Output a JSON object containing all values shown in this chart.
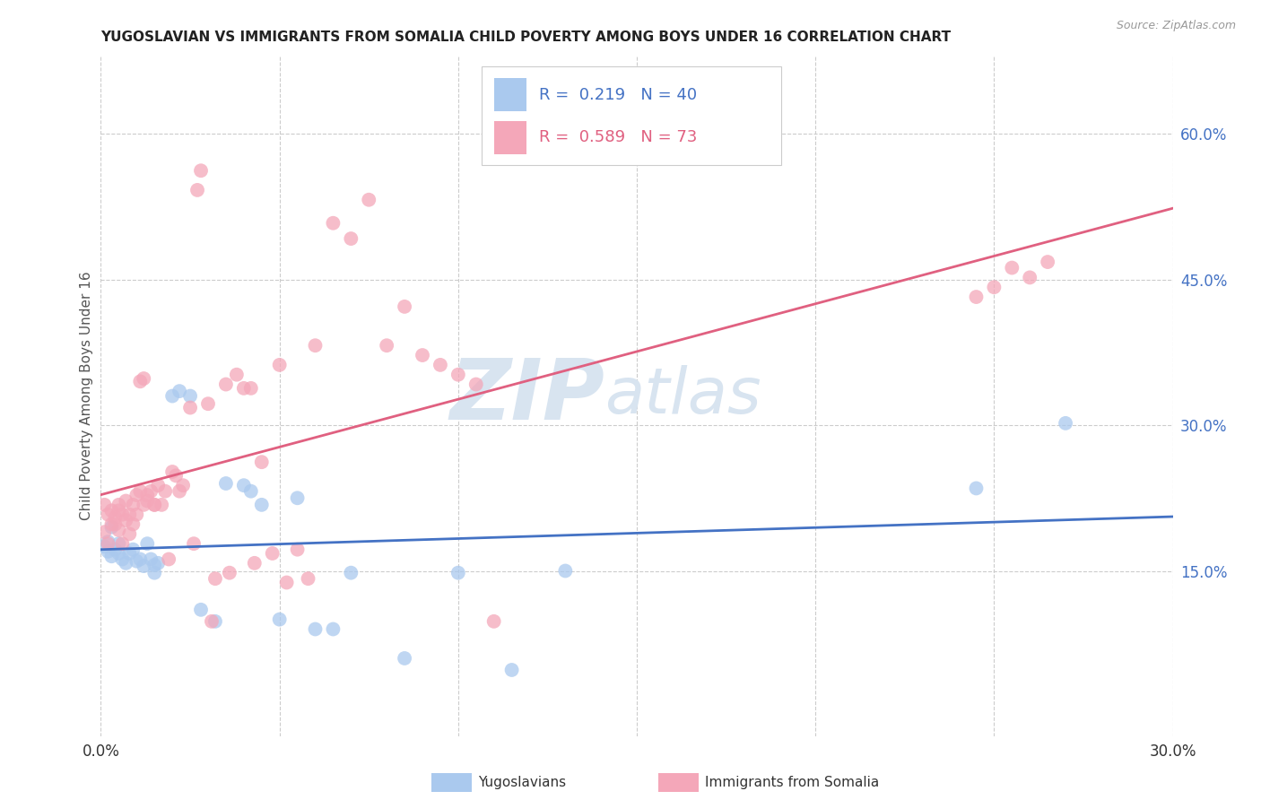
{
  "title": "YUGOSLAVIAN VS IMMIGRANTS FROM SOMALIA CHILD POVERTY AMONG BOYS UNDER 16 CORRELATION CHART",
  "source": "Source: ZipAtlas.com",
  "ylabel": "Child Poverty Among Boys Under 16",
  "xlim": [
    0,
    0.3
  ],
  "ylim": [
    -0.02,
    0.68
  ],
  "xticks": [
    0.0,
    0.05,
    0.1,
    0.15,
    0.2,
    0.25,
    0.3
  ],
  "yticks_right": [
    0.15,
    0.3,
    0.45,
    0.6
  ],
  "ytick_labels_right": [
    "15.0%",
    "30.0%",
    "45.0%",
    "60.0%"
  ],
  "series1_name": "Yugoslavians",
  "series1_color": "#aac9ee",
  "series1_line_color": "#4472c4",
  "series1_R": 0.219,
  "series1_N": 40,
  "series2_name": "Immigrants from Somalia",
  "series2_color": "#f4a7b9",
  "series2_line_color": "#e06080",
  "series2_R": 0.589,
  "series2_N": 73,
  "watermark_zip": "ZIP",
  "watermark_atlas": "atlas",
  "background_color": "#ffffff",
  "series1_x": [
    0.001,
    0.002,
    0.002,
    0.003,
    0.003,
    0.004,
    0.005,
    0.005,
    0.006,
    0.007,
    0.008,
    0.009,
    0.01,
    0.011,
    0.012,
    0.013,
    0.014,
    0.015,
    0.015,
    0.016,
    0.02,
    0.022,
    0.025,
    0.028,
    0.032,
    0.035,
    0.04,
    0.042,
    0.045,
    0.05,
    0.055,
    0.06,
    0.065,
    0.07,
    0.085,
    0.1,
    0.115,
    0.13,
    0.245,
    0.27
  ],
  "series1_y": [
    0.175,
    0.17,
    0.18,
    0.165,
    0.195,
    0.172,
    0.168,
    0.178,
    0.162,
    0.158,
    0.168,
    0.172,
    0.16,
    0.162,
    0.155,
    0.178,
    0.162,
    0.148,
    0.156,
    0.158,
    0.33,
    0.335,
    0.33,
    0.11,
    0.098,
    0.24,
    0.238,
    0.232,
    0.218,
    0.1,
    0.225,
    0.09,
    0.09,
    0.148,
    0.06,
    0.148,
    0.048,
    0.15,
    0.235,
    0.302
  ],
  "series2_x": [
    0.001,
    0.001,
    0.002,
    0.002,
    0.003,
    0.003,
    0.004,
    0.004,
    0.005,
    0.005,
    0.005,
    0.006,
    0.006,
    0.007,
    0.007,
    0.008,
    0.008,
    0.009,
    0.009,
    0.01,
    0.01,
    0.011,
    0.011,
    0.012,
    0.012,
    0.013,
    0.013,
    0.014,
    0.015,
    0.015,
    0.016,
    0.017,
    0.018,
    0.019,
    0.02,
    0.021,
    0.022,
    0.023,
    0.025,
    0.026,
    0.027,
    0.028,
    0.03,
    0.031,
    0.032,
    0.035,
    0.036,
    0.038,
    0.04,
    0.042,
    0.043,
    0.045,
    0.048,
    0.05,
    0.052,
    0.055,
    0.058,
    0.06,
    0.065,
    0.07,
    0.075,
    0.08,
    0.085,
    0.09,
    0.095,
    0.1,
    0.105,
    0.11,
    0.245,
    0.25,
    0.255,
    0.26,
    0.265
  ],
  "series2_y": [
    0.19,
    0.218,
    0.178,
    0.208,
    0.198,
    0.212,
    0.205,
    0.198,
    0.218,
    0.192,
    0.212,
    0.208,
    0.178,
    0.202,
    0.222,
    0.208,
    0.188,
    0.218,
    0.198,
    0.228,
    0.208,
    0.232,
    0.345,
    0.218,
    0.348,
    0.222,
    0.228,
    0.232,
    0.218,
    0.218,
    0.238,
    0.218,
    0.232,
    0.162,
    0.252,
    0.248,
    0.232,
    0.238,
    0.318,
    0.178,
    0.542,
    0.562,
    0.322,
    0.098,
    0.142,
    0.342,
    0.148,
    0.352,
    0.338,
    0.338,
    0.158,
    0.262,
    0.168,
    0.362,
    0.138,
    0.172,
    0.142,
    0.382,
    0.508,
    0.492,
    0.532,
    0.382,
    0.422,
    0.372,
    0.362,
    0.352,
    0.342,
    0.098,
    0.432,
    0.442,
    0.462,
    0.452,
    0.468
  ]
}
